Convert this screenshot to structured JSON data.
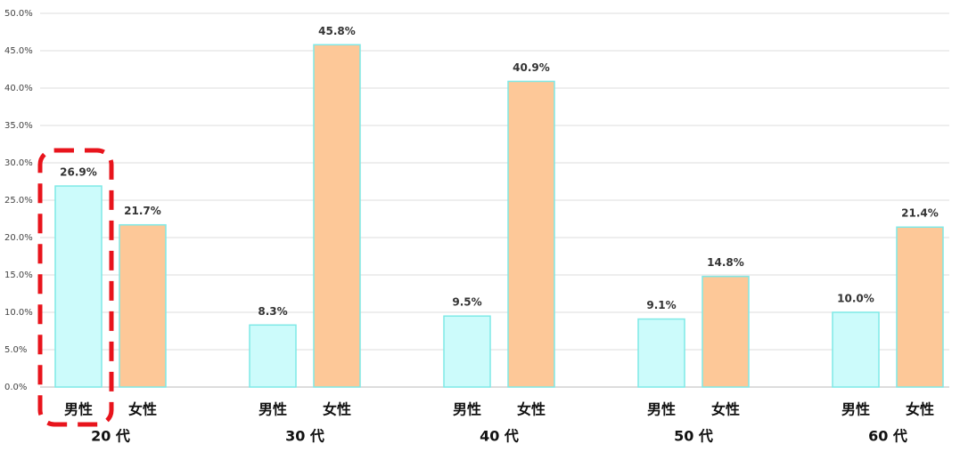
{
  "chart_data": {
    "type": "bar",
    "categories": [
      "20 代",
      "30 代",
      "40 代",
      "50 代",
      "60 代"
    ],
    "series": [
      {
        "name": "男性",
        "color": "#ccfbfb",
        "values": [
          26.9,
          8.3,
          9.5,
          9.1,
          10.0
        ],
        "value_labels": [
          "26.9%",
          "8.3%",
          "9.5%",
          "9.1%",
          "10.0%"
        ]
      },
      {
        "name": "女性",
        "color": "#fdc898",
        "values": [
          21.7,
          45.8,
          40.9,
          14.8,
          21.4
        ],
        "value_labels": [
          "21.7%",
          "45.8%",
          "40.9%",
          "14.8%",
          "21.4%"
        ]
      }
    ],
    "ylim": [
      0,
      50
    ],
    "yticks": [
      {
        "value": 0,
        "label": "0.0%"
      },
      {
        "value": 5,
        "label": "5.0%"
      },
      {
        "value": 10,
        "label": "10.0%"
      },
      {
        "value": 15,
        "label": "15.0%"
      },
      {
        "value": 20,
        "label": "20.0%"
      },
      {
        "value": 25,
        "label": "25.0%"
      },
      {
        "value": 30,
        "label": "30.0%"
      },
      {
        "value": 35,
        "label": "35.0%"
      },
      {
        "value": 40,
        "label": "40.0%"
      },
      {
        "value": 45,
        "label": "45.0%"
      },
      {
        "value": 50,
        "label": "50.0%"
      }
    ],
    "grid": true
  }
}
